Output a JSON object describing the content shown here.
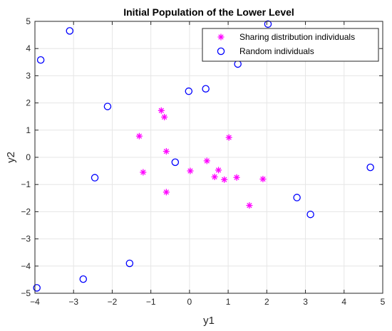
{
  "chart_data": {
    "type": "scatter",
    "title": "Initial Population of the Lower Level",
    "xlabel": "y1",
    "ylabel": "y2",
    "xlim": [
      -4,
      5
    ],
    "ylim": [
      -5,
      5
    ],
    "xticks": [
      -4,
      -3,
      -2,
      -1,
      0,
      1,
      2,
      3,
      4,
      5
    ],
    "yticks": [
      -5,
      -4,
      -3,
      -2,
      -1,
      0,
      1,
      2,
      3,
      4,
      5
    ],
    "xtick_labels": [
      "−4",
      "−3",
      "−2",
      "−1",
      "0",
      "1",
      "2",
      "3",
      "4",
      "5"
    ],
    "ytick_labels": [
      "−5",
      "−4",
      "−3",
      "−2",
      "−1",
      "0",
      "1",
      "2",
      "3",
      "4",
      "5"
    ],
    "grid": true,
    "legend_position": "top-right",
    "series": [
      {
        "name": "Sharing distribution individuals",
        "marker": "asterisk",
        "color": "#ff00ff",
        "points": [
          [
            -0.73,
            1.72
          ],
          [
            -0.65,
            1.48
          ],
          [
            -1.3,
            0.78
          ],
          [
            -0.6,
            0.22
          ],
          [
            -1.2,
            -0.55
          ],
          [
            -0.6,
            -1.28
          ],
          [
            0.02,
            -0.5
          ],
          [
            0.45,
            -0.13
          ],
          [
            0.75,
            -0.47
          ],
          [
            0.65,
            -0.72
          ],
          [
            0.9,
            -0.82
          ],
          [
            1.02,
            0.73
          ],
          [
            1.22,
            -0.74
          ],
          [
            1.9,
            -0.8
          ],
          [
            1.55,
            -1.77
          ]
        ]
      },
      {
        "name": "Random individuals",
        "marker": "circle",
        "color": "#0000ff",
        "points": [
          [
            -3.1,
            4.65
          ],
          [
            -3.85,
            3.58
          ],
          [
            -2.12,
            1.87
          ],
          [
            -2.45,
            -0.75
          ],
          [
            -0.37,
            -0.18
          ],
          [
            -0.02,
            2.43
          ],
          [
            0.42,
            2.52
          ],
          [
            1.25,
            3.43
          ],
          [
            2.03,
            4.9
          ],
          [
            4.68,
            -0.37
          ],
          [
            2.78,
            -1.48
          ],
          [
            3.13,
            -2.1
          ],
          [
            -1.55,
            -3.9
          ],
          [
            -2.75,
            -4.48
          ],
          [
            -3.95,
            -4.8
          ]
        ]
      }
    ]
  }
}
